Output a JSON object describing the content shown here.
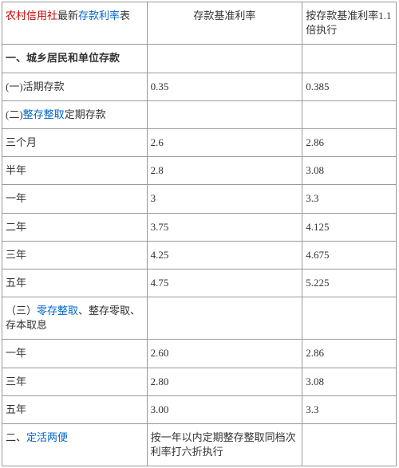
{
  "colors": {
    "red": "#cc0000",
    "blue": "#0066cc",
    "text": "#333333",
    "border": "#999999",
    "background": "#ffffff"
  },
  "header": {
    "title_part1": "农村信用社",
    "title_part2": "最新",
    "title_part3": "存款利率",
    "title_part4": "表",
    "col2": "存款基准利率",
    "col3": "按存款基准利率1.1倍执行"
  },
  "section1": {
    "title": "一、城乡居民和单位存款"
  },
  "demand": {
    "label": "(一)活期存款",
    "rate": "0.35",
    "rate11": "0.385"
  },
  "lump": {
    "label_prefix": "(二)",
    "label_link": "整存整取",
    "label_suffix": "定期存款",
    "rows": [
      {
        "term": "三个月",
        "rate": "2.6",
        "rate11": "2.86"
      },
      {
        "term": "半年",
        "rate": "2.8",
        "rate11": "3.08"
      },
      {
        "term": "一年",
        "rate": "3",
        "rate11": "3.3"
      },
      {
        "term": "二年",
        "rate": "3.75",
        "rate11": "4.125"
      },
      {
        "term": "三年",
        "rate": "4.25",
        "rate11": "4.675"
      },
      {
        "term": "五年",
        "rate": "4.75",
        "rate11": "5.225"
      }
    ]
  },
  "partial": {
    "label_prefix": "（三）",
    "label_link": "零存整取",
    "label_suffix": "、整存零取、存本取息",
    "rows": [
      {
        "term": "一年",
        "rate": "2.60",
        "rate11": "2.86"
      },
      {
        "term": "三年",
        "rate": "2.80",
        "rate11": "3.08"
      },
      {
        "term": "五年",
        "rate": "3.00",
        "rate11": "3.3"
      }
    ]
  },
  "flex": {
    "label_prefix": "二、",
    "label_link": "定活两便",
    "note": "按一年以内定期整存整取同档次利率打六折执行"
  }
}
